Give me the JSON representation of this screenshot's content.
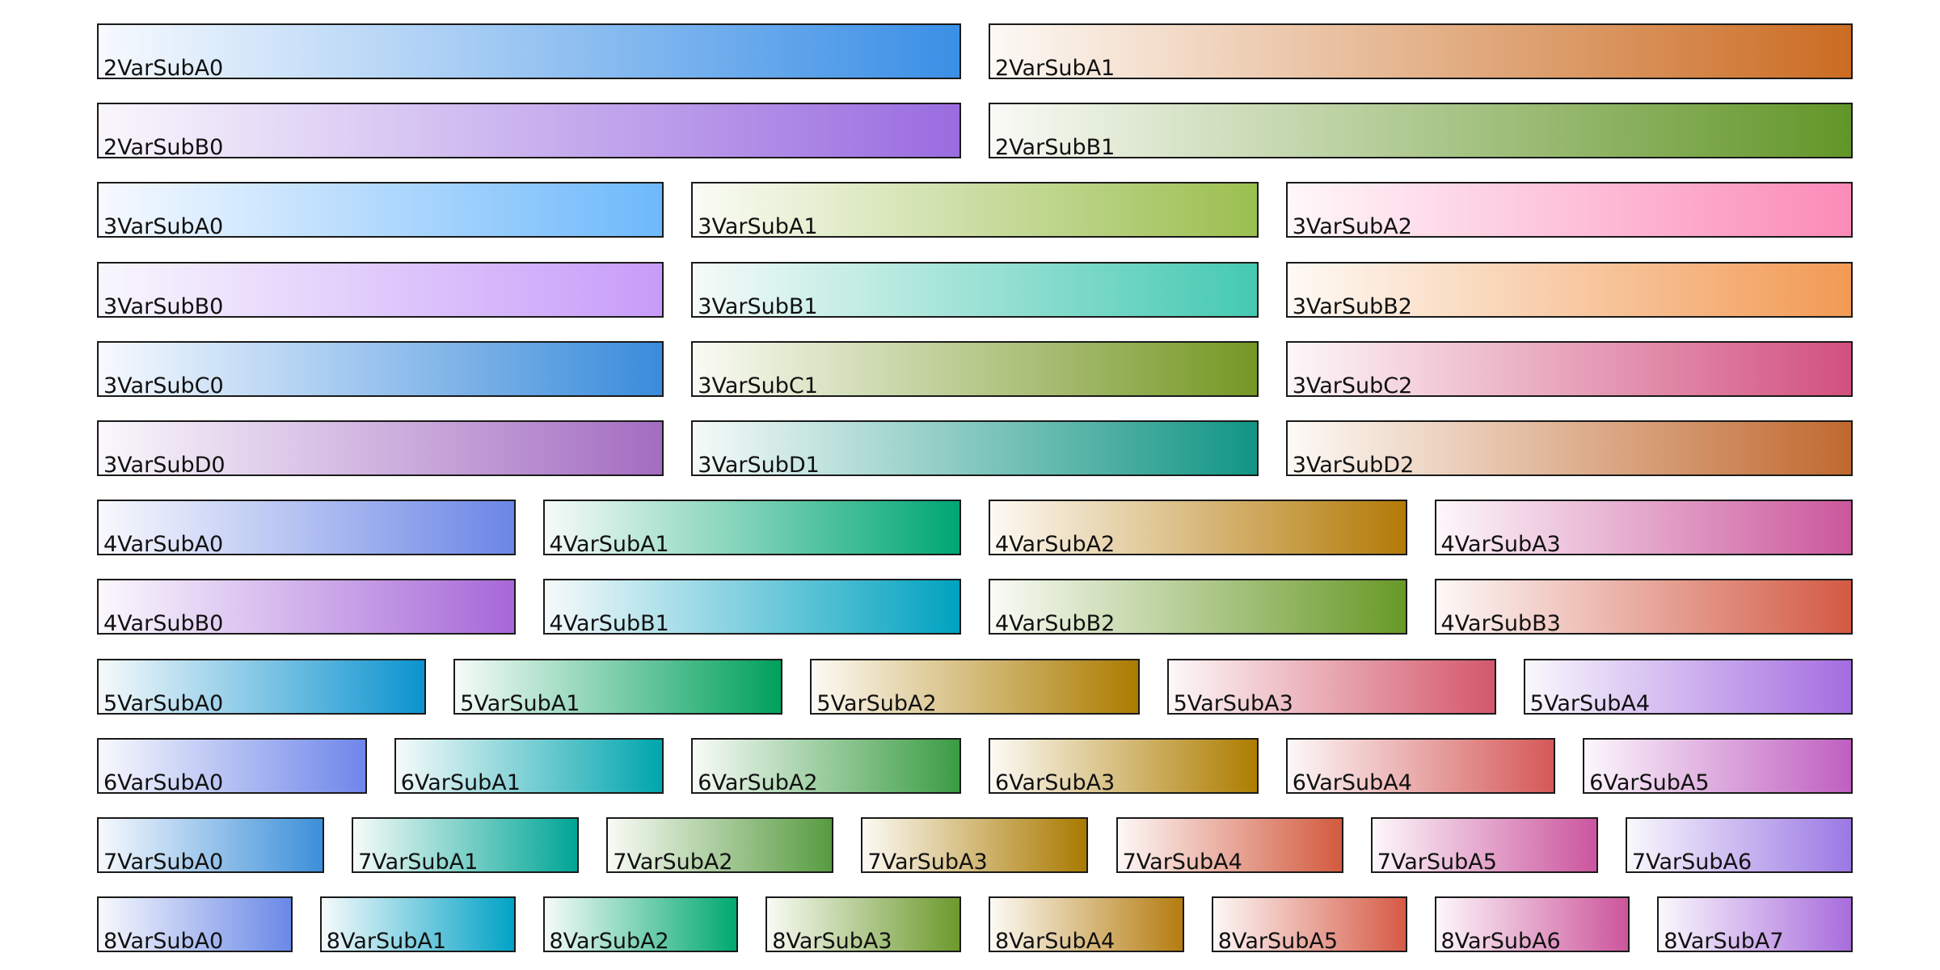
{
  "chart_data": {
    "type": "colormap-reference",
    "title": "",
    "rows": [
      [
        {
          "name": "2VarSubA0",
          "colors": [
            "#f7fafe",
            "#3a8fe6"
          ]
        },
        {
          "name": "2VarSubA1",
          "colors": [
            "#fdf9f5",
            "#cb6c22"
          ]
        }
      ],
      [
        {
          "name": "2VarSubB0",
          "colors": [
            "#f9f7fc",
            "#9a6ce0"
          ]
        },
        {
          "name": "2VarSubB1",
          "colors": [
            "#f9faf6",
            "#629628"
          ]
        }
      ],
      [
        {
          "name": "3VarSubA0",
          "colors": [
            "#f7fafe",
            "#6db9fc"
          ]
        },
        {
          "name": "3VarSubA1",
          "colors": [
            "#fbfcf6",
            "#9bbf4f"
          ]
        },
        {
          "name": "3VarSubA2",
          "colors": [
            "#fef8fa",
            "#fc8ab8"
          ]
        }
      ],
      [
        {
          "name": "3VarSubB0",
          "colors": [
            "#f8f7fd",
            "#c79cf9"
          ]
        },
        {
          "name": "3VarSubB1",
          "colors": [
            "#f6fbf9",
            "#44c9b2"
          ]
        },
        {
          "name": "3VarSubB2",
          "colors": [
            "#fefaf5",
            "#f29a54"
          ]
        }
      ],
      [
        {
          "name": "3VarSubC0",
          "colors": [
            "#f7fafe",
            "#398bdc"
          ]
        },
        {
          "name": "3VarSubC1",
          "colors": [
            "#fafbf5",
            "#759724"
          ]
        },
        {
          "name": "3VarSubC2",
          "colors": [
            "#fdf7f9",
            "#d2507e"
          ]
        }
      ],
      [
        {
          "name": "3VarSubD0",
          "colors": [
            "#faf8fc",
            "#a36cc1"
          ]
        },
        {
          "name": "3VarSubD1",
          "colors": [
            "#f6faf9",
            "#119584"
          ]
        },
        {
          "name": "3VarSubD2",
          "colors": [
            "#fdfaf6",
            "#c0692f"
          ]
        }
      ],
      [
        {
          "name": "4VarSubA0",
          "colors": [
            "#f8f9fd",
            "#6b86e6"
          ]
        },
        {
          "name": "4VarSubA1",
          "colors": [
            "#f6fbf8",
            "#00a673"
          ]
        },
        {
          "name": "4VarSubA2",
          "colors": [
            "#fdfaf4",
            "#b37a07"
          ]
        },
        {
          "name": "4VarSubA3",
          "colors": [
            "#fdf7fa",
            "#cb579c"
          ]
        }
      ],
      [
        {
          "name": "4VarSubB0",
          "colors": [
            "#faf8fd",
            "#a667d8"
          ]
        },
        {
          "name": "4VarSubB1",
          "colors": [
            "#f6fafb",
            "#00a2c0"
          ]
        },
        {
          "name": "4VarSubB2",
          "colors": [
            "#fafbf6",
            "#689927"
          ]
        },
        {
          "name": "4VarSubB3",
          "colors": [
            "#fdf8f7",
            "#d35a44"
          ]
        }
      ],
      [
        {
          "name": "5VarSubA0",
          "colors": [
            "#f6f9fb",
            "#0b93cf"
          ]
        },
        {
          "name": "5VarSubA1",
          "colors": [
            "#f6fbf8",
            "#00a05c"
          ]
        },
        {
          "name": "5VarSubA2",
          "colors": [
            "#fcfaf4",
            "#ab7c00"
          ]
        },
        {
          "name": "5VarSubA3",
          "colors": [
            "#fdf8f8",
            "#d3576b"
          ]
        },
        {
          "name": "5VarSubA4",
          "colors": [
            "#f9f8fd",
            "#a46de0"
          ]
        }
      ],
      [
        {
          "name": "6VarSubA0",
          "colors": [
            "#f8f9fd",
            "#6e86e9"
          ]
        },
        {
          "name": "6VarSubA1",
          "colors": [
            "#f6fafa",
            "#00a5ae"
          ]
        },
        {
          "name": "6VarSubA2",
          "colors": [
            "#f8fbf7",
            "#3a9c44"
          ]
        },
        {
          "name": "6VarSubA3",
          "colors": [
            "#fcfaf4",
            "#ad7d00"
          ]
        },
        {
          "name": "6VarSubA4",
          "colors": [
            "#fdf8f8",
            "#d55858"
          ]
        },
        {
          "name": "6VarSubA5",
          "colors": [
            "#fcf7fc",
            "#bf5fc0"
          ]
        }
      ],
      [
        {
          "name": "7VarSubA0",
          "colors": [
            "#f7f9fd",
            "#3b8fd9"
          ]
        },
        {
          "name": "7VarSubA1",
          "colors": [
            "#f6fbf9",
            "#00a596"
          ]
        },
        {
          "name": "7VarSubA2",
          "colors": [
            "#f9fbf6",
            "#579b40"
          ]
        },
        {
          "name": "7VarSubA3",
          "colors": [
            "#fcfaf4",
            "#a97a00"
          ]
        },
        {
          "name": "7VarSubA4",
          "colors": [
            "#fdf8f7",
            "#d35a3e"
          ]
        },
        {
          "name": "7VarSubA5",
          "colors": [
            "#fdf7fa",
            "#cb559e"
          ]
        },
        {
          "name": "7VarSubA6",
          "colors": [
            "#f9f8fd",
            "#9b78e4"
          ]
        }
      ],
      [
        {
          "name": "8VarSubA0",
          "colors": [
            "#f8f9fd",
            "#6a88e7"
          ]
        },
        {
          "name": "8VarSubA1",
          "colors": [
            "#f6fafb",
            "#00a2c6"
          ]
        },
        {
          "name": "8VarSubA2",
          "colors": [
            "#f6fbf8",
            "#00a870"
          ]
        },
        {
          "name": "8VarSubA3",
          "colors": [
            "#f9fbf5",
            "#6c992c"
          ]
        },
        {
          "name": "8VarSubA4",
          "colors": [
            "#fcfaf4",
            "#b57c10"
          ]
        },
        {
          "name": "8VarSubA5",
          "colors": [
            "#fdf8f7",
            "#d65a45"
          ]
        },
        {
          "name": "8VarSubA6",
          "colors": [
            "#fdf7fa",
            "#cc559c"
          ]
        },
        {
          "name": "8VarSubA7",
          "colors": [
            "#faf8fd",
            "#a86cdc"
          ]
        }
      ]
    ]
  }
}
